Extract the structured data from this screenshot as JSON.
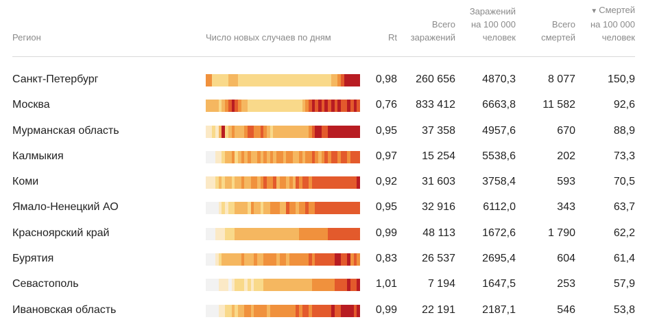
{
  "header": {
    "region": "Регион",
    "daily": "Число новых случаев по дням",
    "rt": "Rt",
    "total_cases": [
      "Всего",
      "заражений"
    ],
    "cases_per_100k": [
      "Заражений",
      "на 100 000",
      "человек"
    ],
    "total_deaths": [
      "Всего",
      "смертей"
    ],
    "deaths_per_100k": [
      "Смертей",
      "на 100 000",
      "человек"
    ],
    "sort_arrow": "▼"
  },
  "colors": {
    "header_text": "#8a8a8a",
    "divider": "#d9d9d9",
    "heat_scale": [
      "#f2f2f2",
      "#fbe9c6",
      "#f9d98a",
      "#f5b760",
      "#f0913d",
      "#e35a2c",
      "#b81c22"
    ]
  },
  "rows": [
    {
      "region": "Санкт-Петербург",
      "rt": "0,98",
      "total_cases": "260 656",
      "cases_per_100k": "4870,3",
      "total_deaths": "8 077",
      "deaths_per_100k": "150,9",
      "heat": [
        4,
        4,
        2,
        2,
        2,
        2,
        2,
        3,
        3,
        3,
        2,
        2,
        2,
        2,
        2,
        2,
        2,
        2,
        2,
        2,
        2,
        2,
        2,
        2,
        2,
        2,
        2,
        2,
        2,
        2,
        2,
        2,
        2,
        2,
        2,
        2,
        2,
        2,
        2,
        3,
        3,
        4,
        5,
        6,
        6,
        6,
        6,
        6
      ]
    },
    {
      "region": "Москва",
      "rt": "0,76",
      "total_cases": "833 412",
      "cases_per_100k": "6663,8",
      "total_deaths": "11 582",
      "deaths_per_100k": "92,6",
      "heat": [
        3,
        3,
        3,
        3,
        2,
        3,
        4,
        5,
        6,
        5,
        4,
        3,
        3,
        2,
        2,
        2,
        2,
        2,
        2,
        2,
        2,
        2,
        2,
        2,
        2,
        2,
        2,
        2,
        2,
        2,
        3,
        4,
        5,
        6,
        5,
        6,
        5,
        6,
        5,
        6,
        5,
        6,
        5,
        5,
        6,
        5,
        6,
        5
      ]
    },
    {
      "region": "Мурманская область",
      "rt": "0,95",
      "total_cases": "37 358",
      "cases_per_100k": "4957,6",
      "total_deaths": "670",
      "deaths_per_100k": "88,9",
      "heat": [
        1,
        1,
        2,
        1,
        3,
        6,
        2,
        3,
        4,
        3,
        3,
        3,
        4,
        5,
        5,
        4,
        4,
        5,
        4,
        3,
        2,
        3,
        3,
        3,
        3,
        3,
        3,
        3,
        3,
        3,
        3,
        3,
        4,
        5,
        6,
        6,
        5,
        5,
        6,
        6,
        6,
        6,
        6,
        6,
        6,
        6,
        6,
        6
      ]
    },
    {
      "region": "Калмыкия",
      "rt": "0,97",
      "total_cases": "15 254",
      "cases_per_100k": "5538,6",
      "total_deaths": "202",
      "deaths_per_100k": "73,3",
      "heat": [
        0,
        0,
        0,
        1,
        1,
        2,
        3,
        3,
        4,
        2,
        3,
        4,
        3,
        4,
        3,
        3,
        4,
        3,
        4,
        3,
        4,
        3,
        4,
        4,
        3,
        4,
        4,
        3,
        3,
        4,
        3,
        4,
        4,
        5,
        4,
        3,
        4,
        5,
        4,
        5,
        5,
        4,
        5,
        5,
        4,
        5,
        5,
        5
      ]
    },
    {
      "region": "Коми",
      "rt": "0,92",
      "total_cases": "31 603",
      "cases_per_100k": "3758,4",
      "total_deaths": "593",
      "deaths_per_100k": "70,5",
      "heat": [
        1,
        1,
        1,
        2,
        3,
        2,
        3,
        3,
        2,
        3,
        3,
        4,
        3,
        3,
        4,
        4,
        3,
        4,
        5,
        4,
        4,
        5,
        3,
        4,
        4,
        3,
        4,
        3,
        5,
        4,
        5,
        5,
        4,
        5,
        5,
        5,
        5,
        5,
        5,
        5,
        5,
        5,
        5,
        5,
        5,
        5,
        5,
        6
      ]
    },
    {
      "region": "Ямало-Ненецкий АО",
      "rt": "0,95",
      "total_cases": "32 916",
      "cases_per_100k": "6112,0",
      "total_deaths": "343",
      "deaths_per_100k": "63,7",
      "heat": [
        0,
        0,
        0,
        0,
        1,
        2,
        1,
        2,
        2,
        3,
        3,
        3,
        3,
        2,
        4,
        3,
        3,
        2,
        3,
        3,
        4,
        4,
        4,
        3,
        3,
        5,
        4,
        4,
        3,
        4,
        4,
        5,
        4,
        4,
        5,
        5,
        5,
        5,
        5,
        5,
        5,
        5,
        5,
        5,
        5,
        5,
        5,
        5
      ]
    },
    {
      "region": "Красноярский край",
      "rt": "0,99",
      "total_cases": "48 113",
      "cases_per_100k": "1672,6",
      "total_deaths": "1 790",
      "deaths_per_100k": "62,2",
      "heat": [
        0,
        0,
        0,
        1,
        1,
        1,
        2,
        2,
        2,
        3,
        3,
        3,
        3,
        3,
        3,
        3,
        3,
        3,
        3,
        3,
        3,
        3,
        3,
        3,
        3,
        3,
        3,
        3,
        3,
        4,
        4,
        4,
        4,
        4,
        4,
        4,
        4,
        4,
        5,
        5,
        5,
        5,
        5,
        5,
        5,
        5,
        5,
        5
      ]
    },
    {
      "region": "Бурятия",
      "rt": "0,83",
      "total_cases": "26 537",
      "cases_per_100k": "2695,4",
      "total_deaths": "604",
      "deaths_per_100k": "61,4",
      "heat": [
        0,
        0,
        0,
        1,
        2,
        3,
        3,
        3,
        3,
        3,
        3,
        4,
        3,
        3,
        3,
        4,
        3,
        3,
        4,
        4,
        4,
        4,
        3,
        4,
        4,
        3,
        4,
        4,
        4,
        4,
        4,
        4,
        5,
        4,
        5,
        5,
        5,
        5,
        5,
        5,
        6,
        6,
        5,
        5,
        6,
        4,
        5,
        4
      ]
    },
    {
      "region": "Севастополь",
      "rt": "1,01",
      "total_cases": "7 194",
      "cases_per_100k": "1647,5",
      "total_deaths": "253",
      "deaths_per_100k": "57,9",
      "heat": [
        0,
        0,
        0,
        0,
        1,
        1,
        1,
        0,
        1,
        2,
        2,
        2,
        1,
        2,
        1,
        2,
        2,
        2,
        3,
        3,
        3,
        3,
        3,
        3,
        3,
        3,
        3,
        3,
        3,
        3,
        3,
        3,
        3,
        4,
        4,
        4,
        4,
        4,
        4,
        4,
        5,
        5,
        5,
        5,
        6,
        5,
        5,
        6
      ]
    },
    {
      "region": "Ивановская область",
      "rt": "0,99",
      "total_cases": "22 191",
      "cases_per_100k": "2187,1",
      "total_deaths": "546",
      "deaths_per_100k": "53,8",
      "heat": [
        0,
        0,
        0,
        0,
        1,
        1,
        2,
        2,
        3,
        2,
        3,
        3,
        4,
        4,
        3,
        4,
        4,
        4,
        4,
        3,
        4,
        4,
        4,
        4,
        4,
        4,
        4,
        4,
        5,
        4,
        5,
        5,
        4,
        5,
        5,
        5,
        5,
        5,
        5,
        6,
        5,
        5,
        6,
        6,
        6,
        6,
        5,
        6
      ]
    }
  ]
}
